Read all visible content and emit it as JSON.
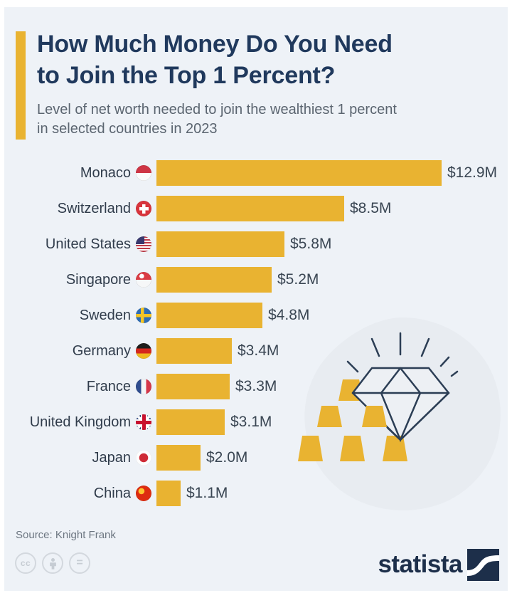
{
  "page": {
    "background_color": "#eef2f7",
    "frame_color": "#ffffff",
    "accent_color": "#e9b331",
    "title_color": "#20395d",
    "text_color": "#3a4653"
  },
  "header": {
    "title_line1": "How Much Money Do You Need",
    "title_line2": "to Join the Top 1 Percent?",
    "subtitle_line1": "Level of net worth needed to join the wealthiest 1 percent",
    "subtitle_line2": "in selected countries in 2023"
  },
  "chart_data": {
    "type": "bar",
    "orientation": "horizontal",
    "title": "How Much Money Do You Need to Join the Top 1 Percent?",
    "subtitle": "Level of net worth needed to join the wealthiest 1 percent in selected countries in 2023",
    "unit": "million USD",
    "xmax": 12.9,
    "grid": false,
    "legend": false,
    "bar_color": "#e9b331",
    "categories": [
      "Monaco",
      "Switzerland",
      "United States",
      "Singapore",
      "Sweden",
      "Germany",
      "France",
      "United Kingdom",
      "Japan",
      "China"
    ],
    "values": [
      12.9,
      8.5,
      5.8,
      5.2,
      4.8,
      3.4,
      3.3,
      3.1,
      2.0,
      1.1
    ],
    "value_labels": [
      "$12.9M",
      "$8.5M",
      "$5.8M",
      "$5.2M",
      "$4.8M",
      "$3.4M",
      "$3.3M",
      "$3.1M",
      "$2.0M",
      "$1.1M"
    ],
    "flags": [
      "monaco",
      "switzerland",
      "us",
      "singapore",
      "sweden",
      "germany",
      "france",
      "uk",
      "japan",
      "china"
    ]
  },
  "illustration": {
    "name": "diamond-and-gold-bars",
    "diamond_outline_color": "#2c3e55",
    "gold_color": "#e9b331",
    "blob_color": "#e8ecf1"
  },
  "footer": {
    "source": "Source: Knight Frank",
    "license_icons": [
      "cc-icon",
      "attribution-person-icon",
      "no-derivatives-equals-icon"
    ],
    "brand": "statista"
  }
}
